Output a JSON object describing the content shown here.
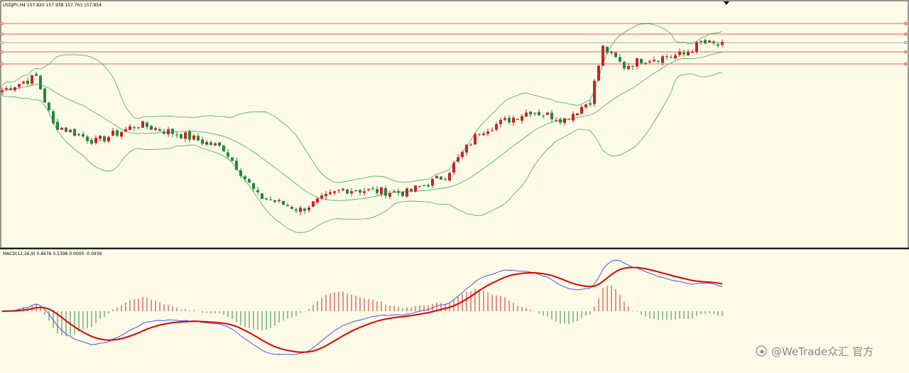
{
  "header": {
    "symbol_label": "USDJPY,H4 157.820 157.938 157.763 157.854"
  },
  "macd_panel": {
    "label": "MACD(12,26,9) 0.4676 0.5398 0.0000 -0.0939"
  },
  "watermark": {
    "text": "@WeTrade众汇 官方"
  },
  "colors": {
    "background": "#fdfbe8",
    "bull_candle": "#cc2222",
    "bear_candle": "#22883a",
    "bollinger": "#3aaa5e",
    "level_line": "#e03030",
    "macd_line": "#3344ee",
    "signal_line": "#e00000",
    "hist_positive": "#cc2a2a",
    "hist_negative": "#2e8b3e"
  },
  "chart_data": [
    {
      "type": "candlestick",
      "title": "USDJPY,H4",
      "current_bar": {
        "open": 157.82,
        "high": 157.938,
        "low": 157.763,
        "close": 157.854
      },
      "indicators": [
        "Bollinger Bands",
        "horizontal levels"
      ],
      "horizontal_levels_count": 5,
      "trend_outline": [
        {
          "bar": 0,
          "price": 0.72
        },
        {
          "bar": 8,
          "price": 0.8
        },
        {
          "bar": 12,
          "price": 0.52
        },
        {
          "bar": 22,
          "price": 0.42
        },
        {
          "bar": 32,
          "price": 0.52
        },
        {
          "bar": 42,
          "price": 0.46
        },
        {
          "bar": 52,
          "price": 0.38
        },
        {
          "bar": 60,
          "price": 0.1
        },
        {
          "bar": 70,
          "price": 0.02
        },
        {
          "bar": 80,
          "price": 0.14
        },
        {
          "bar": 95,
          "price": 0.12
        },
        {
          "bar": 104,
          "price": 0.22
        },
        {
          "bar": 112,
          "price": 0.48
        },
        {
          "bar": 124,
          "price": 0.6
        },
        {
          "bar": 132,
          "price": 0.55
        },
        {
          "bar": 138,
          "price": 0.66
        },
        {
          "bar": 141,
          "price": 0.97
        },
        {
          "bar": 146,
          "price": 0.86
        },
        {
          "bar": 150,
          "price": 0.9
        },
        {
          "bar": 160,
          "price": 0.93
        },
        {
          "bar": 164,
          "price": 1.0
        },
        {
          "bar": 169,
          "price": 0.98
        }
      ],
      "bars": 170,
      "grid": false
    },
    {
      "type": "line",
      "title": "MACD(12,26,9)",
      "values": {
        "macd": 0.4676,
        "signal": 0.5398,
        "histogram_a": 0.0,
        "histogram_b": -0.0939
      },
      "series": [
        {
          "name": "MACD",
          "color": "#3344ee"
        },
        {
          "name": "Signal",
          "color": "#e00000"
        }
      ]
    }
  ]
}
